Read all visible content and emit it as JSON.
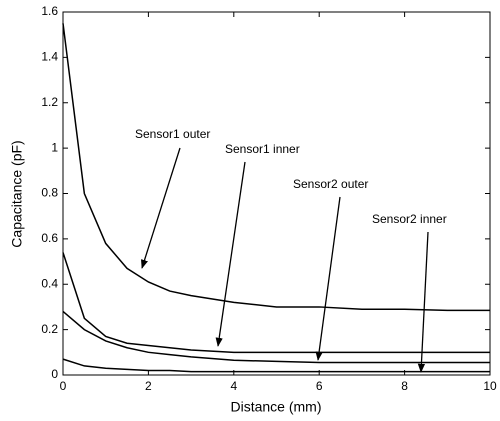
{
  "chart_data": {
    "type": "line",
    "x": [
      0,
      0.5,
      1,
      1.5,
      2,
      2.5,
      3,
      4,
      5,
      6,
      7,
      8,
      9,
      10
    ],
    "series": [
      {
        "name": "Sensor1 outer",
        "color": "#000000",
        "values": [
          1.55,
          0.8,
          0.58,
          0.47,
          0.41,
          0.37,
          0.35,
          0.32,
          0.3,
          0.3,
          0.29,
          0.29,
          0.285,
          0.285
        ]
      },
      {
        "name": "Sensor1 inner",
        "color": "#000000",
        "values": [
          0.54,
          0.25,
          0.17,
          0.14,
          0.13,
          0.12,
          0.11,
          0.1,
          0.1,
          0.1,
          0.1,
          0.1,
          0.1,
          0.1
        ]
      },
      {
        "name": "Sensor2 outer",
        "color": "#000000",
        "values": [
          0.28,
          0.2,
          0.15,
          0.12,
          0.1,
          0.09,
          0.08,
          0.065,
          0.06,
          0.055,
          0.055,
          0.055,
          0.055,
          0.055
        ]
      },
      {
        "name": "Sensor2 inner",
        "color": "#000000",
        "values": [
          0.07,
          0.04,
          0.03,
          0.025,
          0.02,
          0.02,
          0.015,
          0.015,
          0.015,
          0.015,
          0.015,
          0.015,
          0.015,
          0.015
        ]
      }
    ],
    "xlabel": "Distance (mm)",
    "ylabel": "Capacitance (pF)",
    "xlim": [
      0,
      10
    ],
    "xticks": [
      0,
      2,
      4,
      6,
      8,
      10
    ],
    "ylim": [
      0,
      1.6
    ],
    "yticks": [
      0,
      0.2,
      0.4,
      0.6,
      0.8,
      1,
      1.2,
      1.4,
      1.6
    ],
    "grid": false
  }
}
